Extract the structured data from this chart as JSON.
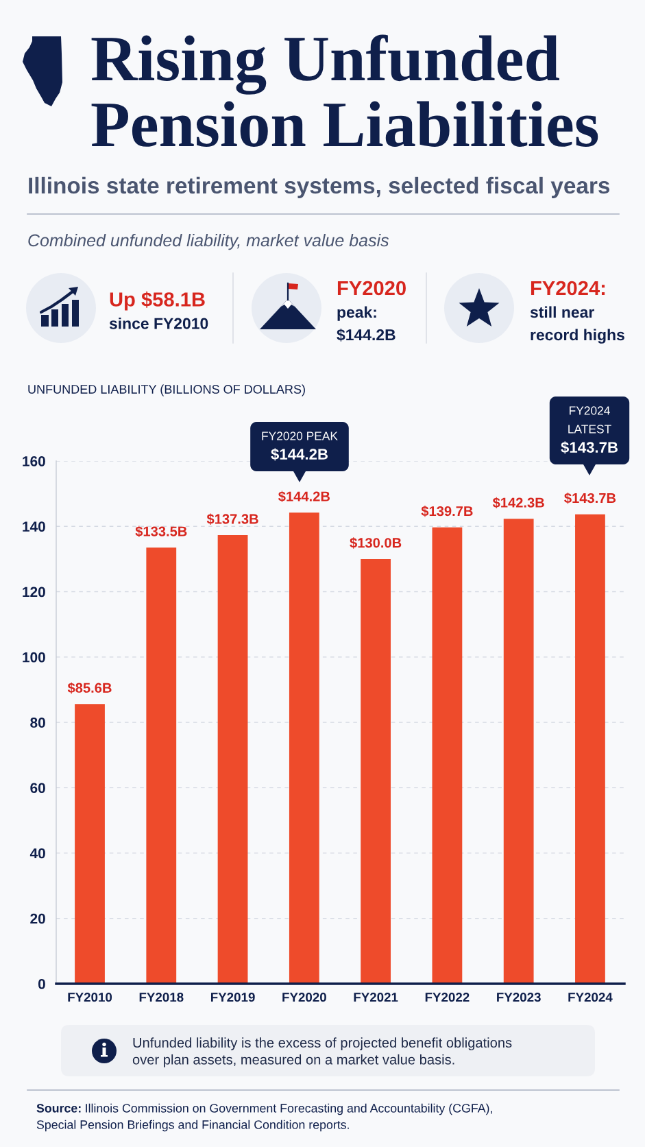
{
  "chart_data": {
    "type": "bar",
    "title": "Rising Unfunded\nPension Liabilities",
    "subtitle": "Illinois state retirement systems, selected fiscal years",
    "categories": [
      "FY2010",
      "FY2018",
      "FY2019",
      "FY2020",
      "FY2021",
      "FY2022",
      "FY2023",
      "FY2024"
    ],
    "values": [
      85.6,
      133.5,
      137.3,
      144.2,
      130.0,
      139.7,
      142.3,
      143.7
    ],
    "color": "#ee4b2b",
    "value_labels": [
      "$85.6B",
      "$133.5B",
      "$137.3B",
      "$144.2B",
      "$130.0B",
      "$139.7B",
      "$142.3B",
      "$143.7B"
    ],
    "ylim": [
      0,
      160
    ],
    "yticks": [
      0,
      20,
      40,
      60,
      80,
      100,
      120,
      140,
      160
    ],
    "grid": "y",
    "annotations": [
      "Combined unfunded liability, market value basis",
      "Up $58.1B\nsince FY2010",
      "FY2020\npeak:\n$144.2B",
      "FY2024:\nstill near\nrecord highs",
      "UNFUNDED LIABILITY (BILLIONS OF DOLLARS)",
      "FY2020 PEAK\n$144.2B",
      "FY2024\nLATEST\n$143.7B",
      "Unfunded liability is the excess of projected benefit obligations\nover plan assets, measured on a market value basis.",
      "Source:",
      "Illinois Commission on Government Forecasting and Accountability (CGFA),",
      "Special Pension Briefings and Financial Condition reports."
    ]
  }
}
